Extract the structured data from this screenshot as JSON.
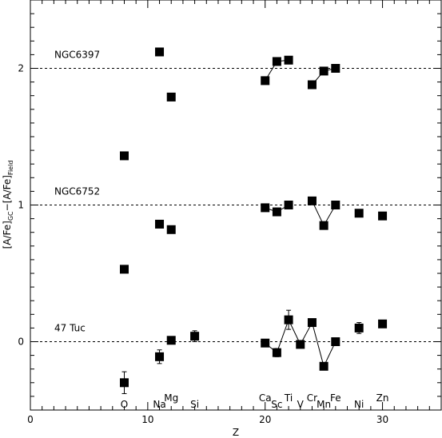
{
  "chart_data": {
    "type": "scatter",
    "xlabel": "Z",
    "ylabel": {
      "text_parts": [
        {
          "text": "[A/Fe]",
          "sub": false
        },
        {
          "text": "GC",
          "sub": true
        },
        {
          "text": "−[A/Fe]",
          "sub": false
        },
        {
          "text": "Field",
          "sub": true
        }
      ]
    },
    "xlim": [
      0,
      35
    ],
    "ylim": [
      -0.5,
      2.5
    ],
    "x_ticks": [
      "0",
      "10",
      "20",
      "30"
    ],
    "x_tick_values": [
      0,
      10,
      20,
      30
    ],
    "y_ticks": [
      "0",
      "1",
      "2"
    ],
    "y_tick_values": [
      0,
      1,
      2
    ],
    "reference_lines": [
      0,
      1,
      2
    ],
    "element_labels": [
      {
        "text": "O",
        "z": 8,
        "row": "lower"
      },
      {
        "text": "Na",
        "z": 11,
        "row": "lower"
      },
      {
        "text": "Mg",
        "z": 12,
        "row": "upper"
      },
      {
        "text": "Si",
        "z": 14,
        "row": "lower"
      },
      {
        "text": "Ca",
        "z": 20,
        "row": "upper"
      },
      {
        "text": "Sc",
        "z": 21,
        "row": "lower"
      },
      {
        "text": "Ti",
        "z": 22,
        "row": "upper"
      },
      {
        "text": "V",
        "z": 23,
        "row": "lower"
      },
      {
        "text": "Cr",
        "z": 24,
        "row": "upper"
      },
      {
        "text": "Mn",
        "z": 25,
        "row": "lower"
      },
      {
        "text": "Fe",
        "z": 26,
        "row": "upper"
      },
      {
        "text": "Ni",
        "z": 28,
        "row": "lower"
      },
      {
        "text": "Zn",
        "z": 30,
        "row": "upper"
      }
    ],
    "series": [
      {
        "name": "NGC6397",
        "label_y": 2.1,
        "points": [
          {
            "x": 8,
            "y": 1.36
          },
          {
            "x": 11,
            "y": 2.12
          },
          {
            "x": 12,
            "y": 1.79
          },
          {
            "x": 20,
            "y": 1.91
          },
          {
            "x": 21,
            "y": 2.05
          },
          {
            "x": 22,
            "y": 2.06
          },
          {
            "x": 24,
            "y": 1.88
          },
          {
            "x": 25,
            "y": 1.98
          },
          {
            "x": 26,
            "y": 2.0
          }
        ],
        "connected": [
          [
            20,
            21,
            22
          ],
          [
            24,
            25,
            26
          ]
        ]
      },
      {
        "name": "NGC6752",
        "label_y": 1.1,
        "points": [
          {
            "x": 8,
            "y": 0.53
          },
          {
            "x": 11,
            "y": 0.86
          },
          {
            "x": 12,
            "y": 0.82
          },
          {
            "x": 20,
            "y": 0.98
          },
          {
            "x": 21,
            "y": 0.95
          },
          {
            "x": 22,
            "y": 1.0
          },
          {
            "x": 24,
            "y": 1.03
          },
          {
            "x": 25,
            "y": 0.85
          },
          {
            "x": 26,
            "y": 1.0
          },
          {
            "x": 28,
            "y": 0.94
          },
          {
            "x": 30,
            "y": 0.92
          }
        ],
        "connected": [
          [
            20,
            21,
            22
          ],
          [
            24,
            25,
            26
          ]
        ]
      },
      {
        "name": "47 Tuc",
        "label_y": 0.1,
        "points": [
          {
            "x": 8,
            "y": -0.3,
            "err": 0.08
          },
          {
            "x": 11,
            "y": -0.11,
            "err": 0.05
          },
          {
            "x": 12,
            "y": 0.01,
            "err": 0.02
          },
          {
            "x": 14,
            "y": 0.04,
            "err": 0.04
          },
          {
            "x": 20,
            "y": -0.01,
            "err": 0.01
          },
          {
            "x": 21,
            "y": -0.08,
            "err": 0.03
          },
          {
            "x": 22,
            "y": 0.16,
            "err": 0.07
          },
          {
            "x": 23,
            "y": -0.02,
            "err": 0.01
          },
          {
            "x": 24,
            "y": 0.14,
            "err": 0.01
          },
          {
            "x": 25,
            "y": -0.18,
            "err": 0.01
          },
          {
            "x": 26,
            "y": 0.0,
            "err": 0.01
          },
          {
            "x": 28,
            "y": 0.1,
            "err": 0.04
          },
          {
            "x": 30,
            "y": 0.13,
            "err": 0.02
          }
        ],
        "connected": [
          [
            20,
            21,
            22,
            23,
            24,
            25,
            26
          ]
        ]
      }
    ]
  }
}
